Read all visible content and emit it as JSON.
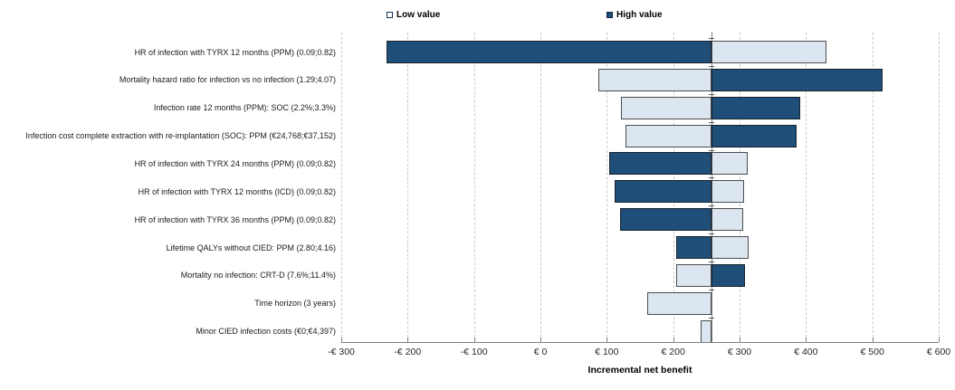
{
  "legend": {
    "low_label": "Low value",
    "high_label": "High value"
  },
  "colors": {
    "low_fill": "#DCE6F1",
    "high_fill": "#1F4E79",
    "bar_border": "#3a3a3a",
    "gridline": "#c9c9c9",
    "axis_line": "#808080",
    "pivot_line": "#7f7f7f"
  },
  "chart_data": {
    "type": "bar",
    "subtype": "tornado",
    "orientation": "horizontal",
    "title": "",
    "xlabel": "Incremental net benefit",
    "legend_entries": [
      "Low value",
      "High value"
    ],
    "legend_position": "top",
    "grid": "vertical-dashed",
    "base_value": 258,
    "x_axis": {
      "min": -300,
      "max": 600,
      "step": 100,
      "tick_values": [
        -300,
        -200,
        -100,
        0,
        100,
        200,
        300,
        400,
        500,
        600
      ],
      "tick_labels": [
        "-€ 300",
        "-€ 200",
        "-€ 100",
        "€ 0",
        "€ 100",
        "€ 200",
        "€ 300",
        "€ 400",
        "€ 500",
        "€ 600"
      ]
    },
    "rows": [
      {
        "label": "HR of infection with TYRX 12 months (PPM) (0.09;0.82)",
        "low": {
          "from": 258,
          "to": 431
        },
        "high": {
          "from": -232,
          "to": 258
        }
      },
      {
        "label": "Mortality hazard ratio for infection vs no infection (1.29;4.07)",
        "low": {
          "from": 87,
          "to": 258
        },
        "high": {
          "from": 258,
          "to": 515
        }
      },
      {
        "label": "Infection rate 12 months (PPM): SOC (2.2%;3.3%)",
        "low": {
          "from": 121,
          "to": 258
        },
        "high": {
          "from": 258,
          "to": 391
        }
      },
      {
        "label": "Infection cost complete extraction with re-implantation (SOC): PPM (€24,768;€37,152)",
        "low": {
          "from": 128,
          "to": 258
        },
        "high": {
          "from": 258,
          "to": 386
        }
      },
      {
        "label": "HR of infection with TYRX 24 months (PPM) (0.09;0.82)",
        "low": {
          "from": 258,
          "to": 312
        },
        "high": {
          "from": 103,
          "to": 258
        }
      },
      {
        "label": "HR of infection with TYRX 12 months (ICD) (0.09;0.82)",
        "low": {
          "from": 258,
          "to": 307
        },
        "high": {
          "from": 112,
          "to": 258
        }
      },
      {
        "label": "HR of infection with TYRX 36 months (PPM) (0.09;0.82)",
        "low": {
          "from": 258,
          "to": 305
        },
        "high": {
          "from": 120,
          "to": 258
        }
      },
      {
        "label": "Lifetime QALYs without CIED: PPM (2.80;4.16)",
        "low": {
          "from": 258,
          "to": 314
        },
        "high": {
          "from": 204,
          "to": 258
        }
      },
      {
        "label": "Mortality no infection: CRT-D (7.6%;11.4%)",
        "low": {
          "from": 205,
          "to": 258
        },
        "high": {
          "from": 258,
          "to": 308
        }
      },
      {
        "label": "Time horizon (3 years)",
        "low": {
          "from": 161,
          "to": 258
        },
        "high": null
      },
      {
        "label": "Minor CIED infection costs (€0;€4,397)",
        "low": {
          "from": 242,
          "to": 258
        },
        "high": null
      }
    ]
  }
}
